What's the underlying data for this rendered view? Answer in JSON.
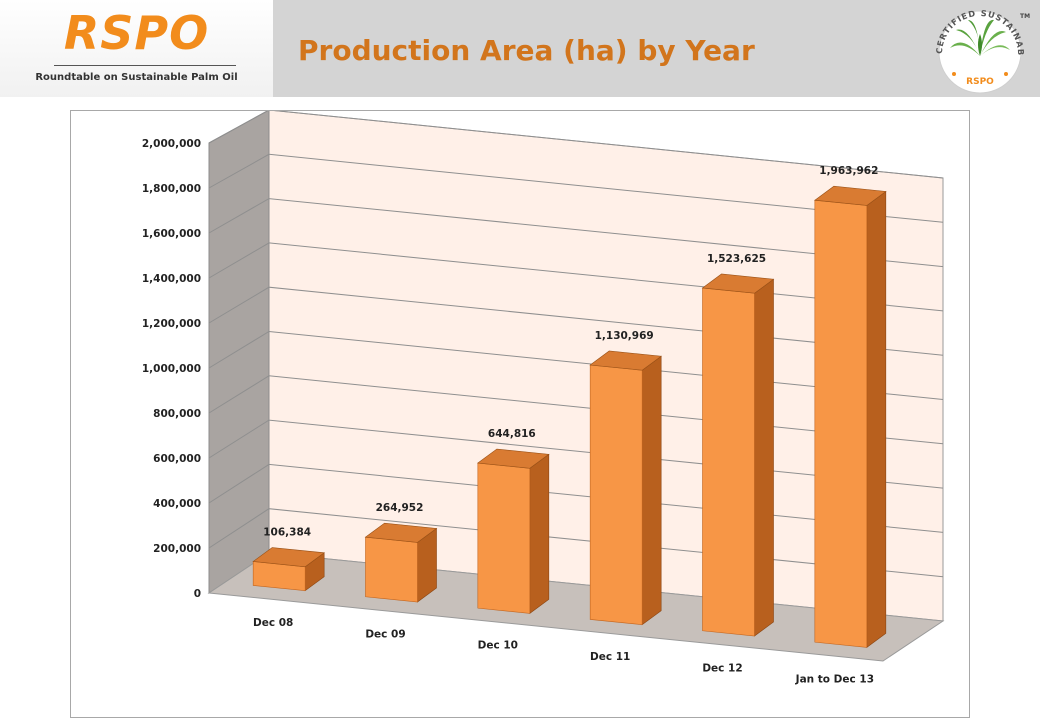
{
  "header": {
    "brand": "RSPO",
    "brand_subtitle": "Roundtable on Sustainable Palm Oil",
    "title": "Production Area (ha) by Year",
    "seal_text": "CERTIFIED SUSTAINABLE PALM OIL",
    "seal_brand": "RSPO",
    "seal_tm": "TM"
  },
  "colors": {
    "accent": "#f28c1c",
    "title": "#d2751c",
    "bar_front": "#f79646",
    "bar_side": "#b8601e",
    "bar_top": "#d97b32"
  },
  "chart_data": {
    "type": "bar",
    "ylabel": "(ha)",
    "categories": [
      "Dec 08",
      "Dec 09",
      "Dec 10",
      "Dec 11",
      "Dec 12",
      "Jan to Dec 13"
    ],
    "values": [
      106384,
      264952,
      644816,
      1130969,
      1523625,
      1963962
    ],
    "value_labels": [
      "106,384",
      "264,952",
      "644,816",
      "1,130,969",
      "1,523,625",
      "1,963,962"
    ],
    "yticks": [
      "0",
      "200,000",
      "400,000",
      "600,000",
      "800,000",
      "1,000,000",
      "1,200,000",
      "1,400,000",
      "1,600,000",
      "1,800,000",
      "2,000,000"
    ],
    "ylim": [
      0,
      2000000
    ],
    "grid": true,
    "legend": "none"
  }
}
